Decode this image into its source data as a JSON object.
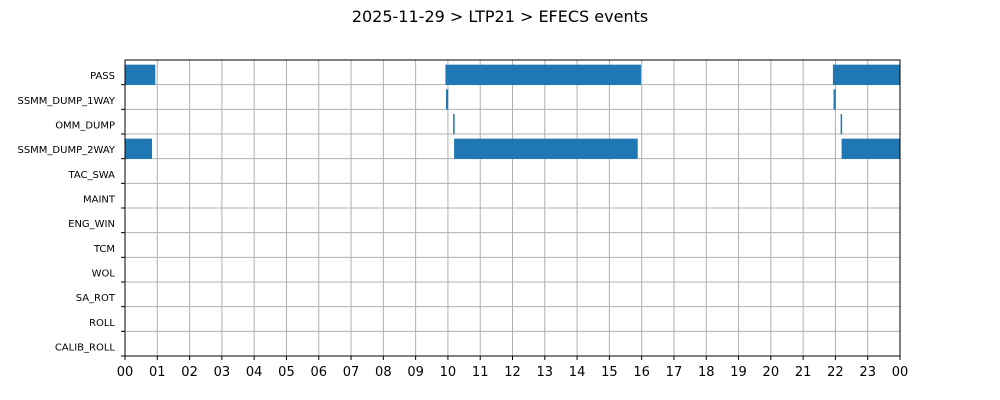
{
  "chart_data": {
    "type": "bar",
    "orientation": "horizontal-timeline",
    "title": "2025-11-29 > LTP21 > EFECS events",
    "xlabel": "",
    "ylabel": "",
    "grid": true,
    "xlim": [
      0,
      24
    ],
    "x_tick_labels": [
      "00",
      "01",
      "02",
      "03",
      "04",
      "05",
      "06",
      "07",
      "08",
      "09",
      "10",
      "11",
      "12",
      "13",
      "14",
      "15",
      "16",
      "17",
      "18",
      "19",
      "20",
      "21",
      "22",
      "23",
      "00"
    ],
    "categories": [
      "PASS",
      "SSMM_DUMP_1WAY",
      "OMM_DUMP",
      "SSMM_DUMP_2WAY",
      "TAC_SWA",
      "MAINT",
      "ENG_WIN",
      "TCM",
      "WOL",
      "SA_ROT",
      "ROLL",
      "CALIB_ROLL"
    ],
    "bar_color": "#1f77b4",
    "series": [
      {
        "category": "PASS",
        "intervals": [
          [
            0.0,
            0.93
          ],
          [
            9.93,
            15.97
          ],
          [
            21.93,
            24.0
          ]
        ]
      },
      {
        "category": "SSMM_DUMP_1WAY",
        "intervals": [
          [
            9.95,
            10.0
          ],
          [
            21.95,
            22.0
          ]
        ]
      },
      {
        "category": "OMM_DUMP",
        "intervals": [
          [
            10.17,
            10.2
          ],
          [
            22.17,
            22.2
          ]
        ]
      },
      {
        "category": "SSMM_DUMP_2WAY",
        "intervals": [
          [
            0.0,
            0.83
          ],
          [
            10.2,
            15.87
          ],
          [
            22.2,
            24.0
          ]
        ]
      },
      {
        "category": "TAC_SWA",
        "intervals": []
      },
      {
        "category": "MAINT",
        "intervals": []
      },
      {
        "category": "ENG_WIN",
        "intervals": []
      },
      {
        "category": "TCM",
        "intervals": []
      },
      {
        "category": "WOL",
        "intervals": []
      },
      {
        "category": "SA_ROT",
        "intervals": []
      },
      {
        "category": "ROLL",
        "intervals": []
      },
      {
        "category": "CALIB_ROLL",
        "intervals": []
      }
    ]
  }
}
